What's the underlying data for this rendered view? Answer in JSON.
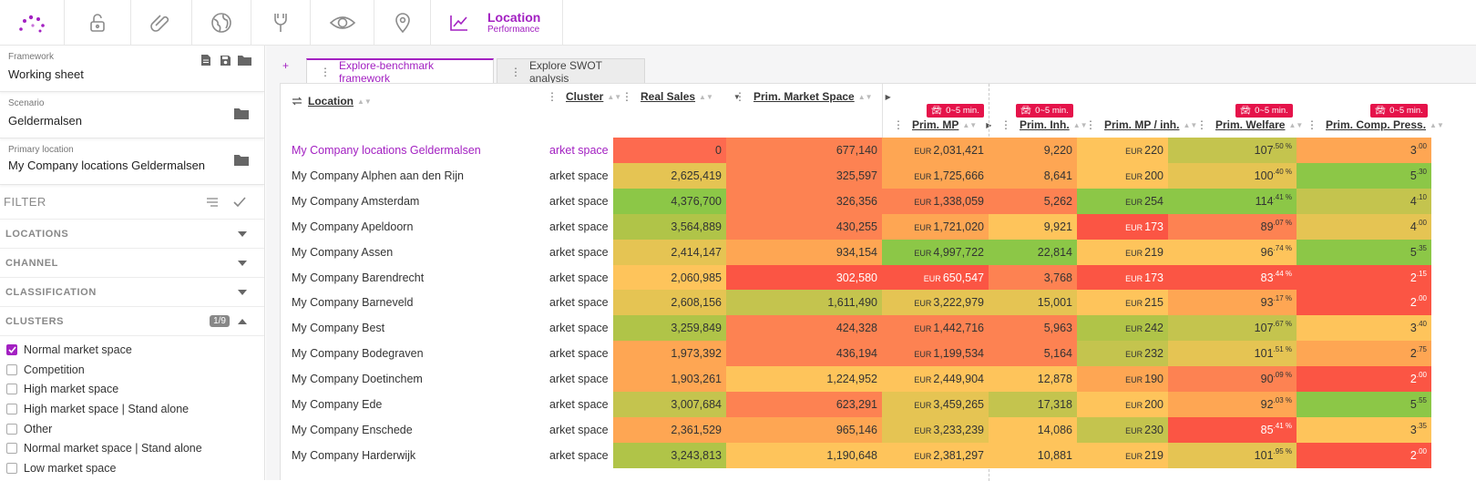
{
  "nav": {
    "items": [
      {
        "icon": "dots-logo-icon"
      },
      {
        "icon": "unlock-icon"
      },
      {
        "icon": "paperclip-icon"
      },
      {
        "icon": "globe-icon"
      },
      {
        "icon": "tools-icon"
      },
      {
        "icon": "eye-icon"
      },
      {
        "icon": "map-pin-icon"
      }
    ],
    "active": {
      "icon": "chart-line-icon",
      "title": "Location",
      "subtitle": "Performance"
    }
  },
  "sidebar": {
    "framework": {
      "caption": "Framework",
      "value": "Working sheet"
    },
    "scenario": {
      "caption": "Scenario",
      "value": "Geldermalsen"
    },
    "primary_location": {
      "caption": "Primary location",
      "value": "My Company locations Geldermalsen"
    },
    "filter_title": "FILTER",
    "sections": [
      "LOCATIONS",
      "CHANNEL",
      "CLASSIFICATION"
    ],
    "clusters_title": "CLUSTERS",
    "clusters_badge": "1/9",
    "clusters": [
      {
        "label": "Normal market space",
        "checked": true
      },
      {
        "label": "Competition",
        "checked": false
      },
      {
        "label": "High market space",
        "checked": false
      },
      {
        "label": "High market space | Stand alone",
        "checked": false
      },
      {
        "label": "Other",
        "checked": false
      },
      {
        "label": "Normal market space | Stand alone",
        "checked": false
      },
      {
        "label": "Low market space",
        "checked": false
      }
    ]
  },
  "tabs": {
    "plus": "+",
    "items": [
      {
        "label": "Explore-benchmark framework",
        "active": true
      },
      {
        "label": "Explore SWOT analysis",
        "active": false
      }
    ]
  },
  "table": {
    "headers": {
      "location": "Location",
      "cluster": "Cluster",
      "real_sales": "Real Sales",
      "prim_market_space": "Prim. Market Space",
      "prim_mp": "Prim. MP",
      "prim_inh": "Prim. Inh.",
      "prim_mp_inh": "Prim. MP / inh.",
      "prim_welfare": "Prim. Welfare",
      "prim_comp_press": "Prim. Comp. Press."
    },
    "travel_badge": "0~5 min.",
    "currency": "EUR",
    "colors": {
      "red": "#fd6a4f",
      "orange_red": "#fd8252",
      "orange": "#fea653",
      "light_orange": "#fec45b",
      "yellow": "#e5c453",
      "olive": "#c4c44e",
      "yellow_green": "#b0c448",
      "green": "#8cc747",
      "deep_red": "#fb5544",
      "accent": "#a321c2",
      "badge_red": "#e5134a"
    },
    "rows": [
      {
        "location": "My Company locations Geldermalsen",
        "cluster": "arket space",
        "selected": true,
        "real_sales": "0",
        "real_sales_c": "red",
        "market_space": "677,140",
        "market_space_c": "orange_red",
        "prim_mp": "2,031,421",
        "prim_mp_c": "orange",
        "inh": "9,220",
        "inh_c": "orange",
        "mp_inh": "220",
        "mp_inh_c": "light_orange",
        "welfare": "107",
        "welfare_sup": ".50 %",
        "welfare_c": "olive",
        "comp": "3",
        "comp_sup": ".00",
        "comp_c": "orange"
      },
      {
        "location": "My Company Alphen aan den Rijn",
        "cluster": "arket space",
        "real_sales": "2,625,419",
        "real_sales_c": "yellow",
        "market_space": "325,597",
        "market_space_c": "orange_red",
        "prim_mp": "1,725,666",
        "prim_mp_c": "orange",
        "inh": "8,641",
        "inh_c": "orange",
        "mp_inh": "200",
        "mp_inh_c": "light_orange",
        "welfare": "100",
        "welfare_sup": ".40 %",
        "welfare_c": "yellow",
        "comp": "5",
        "comp_sup": ".30",
        "comp_c": "green"
      },
      {
        "location": "My Company Amsterdam",
        "cluster": "arket space",
        "real_sales": "4,376,700",
        "real_sales_c": "green",
        "market_space": "326,356",
        "market_space_c": "orange_red",
        "prim_mp": "1,338,059",
        "prim_mp_c": "orange_red",
        "inh": "5,262",
        "inh_c": "orange_red",
        "mp_inh": "254",
        "mp_inh_c": "green",
        "welfare": "114",
        "welfare_sup": ".41 %",
        "welfare_c": "green",
        "comp": "4",
        "comp_sup": ".10",
        "comp_c": "olive"
      },
      {
        "location": "My Company Apeldoorn",
        "cluster": "arket space",
        "real_sales": "3,564,889",
        "real_sales_c": "yellow_green",
        "market_space": "430,255",
        "market_space_c": "orange_red",
        "prim_mp": "1,721,020",
        "prim_mp_c": "orange",
        "inh": "9,921",
        "inh_c": "light_orange",
        "mp_inh": "173",
        "mp_inh_c": "deep_red",
        "welfare": "89",
        "welfare_sup": ".07 %",
        "welfare_c": "orange_red",
        "comp": "4",
        "comp_sup": ".00",
        "comp_c": "yellow"
      },
      {
        "location": "My Company Assen",
        "cluster": "arket space",
        "real_sales": "2,414,147",
        "real_sales_c": "yellow",
        "market_space": "934,154",
        "market_space_c": "orange",
        "prim_mp": "4,997,722",
        "prim_mp_c": "green",
        "inh": "22,814",
        "inh_c": "green",
        "mp_inh": "219",
        "mp_inh_c": "light_orange",
        "welfare": "96",
        "welfare_sup": ".74 %",
        "welfare_c": "light_orange",
        "comp": "5",
        "comp_sup": ".35",
        "comp_c": "green"
      },
      {
        "location": "My Company Barendrecht",
        "cluster": "arket space",
        "real_sales": "2,060,985",
        "real_sales_c": "light_orange",
        "market_space": "302,580",
        "market_space_c": "deep_red",
        "prim_mp": "650,547",
        "prim_mp_c": "deep_red",
        "inh": "3,768",
        "inh_c": "orange_red",
        "mp_inh": "173",
        "mp_inh_c": "deep_red",
        "welfare": "83",
        "welfare_sup": ".44 %",
        "welfare_c": "deep_red",
        "comp": "2",
        "comp_sup": ".15",
        "comp_c": "deep_red"
      },
      {
        "location": "My Company Barneveld",
        "cluster": "arket space",
        "real_sales": "2,608,156",
        "real_sales_c": "yellow",
        "market_space": "1,611,490",
        "market_space_c": "olive",
        "prim_mp": "3,222,979",
        "prim_mp_c": "yellow",
        "inh": "15,001",
        "inh_c": "yellow",
        "mp_inh": "215",
        "mp_inh_c": "light_orange",
        "welfare": "93",
        "welfare_sup": ".17 %",
        "welfare_c": "orange",
        "comp": "2",
        "comp_sup": ".00",
        "comp_c": "deep_red"
      },
      {
        "location": "My Company Best",
        "cluster": "arket space",
        "real_sales": "3,259,849",
        "real_sales_c": "yellow_green",
        "market_space": "424,328",
        "market_space_c": "orange_red",
        "prim_mp": "1,442,716",
        "prim_mp_c": "orange_red",
        "inh": "5,963",
        "inh_c": "orange_red",
        "mp_inh": "242",
        "mp_inh_c": "yellow_green",
        "welfare": "107",
        "welfare_sup": ".67 %",
        "welfare_c": "olive",
        "comp": "3",
        "comp_sup": ".40",
        "comp_c": "light_orange"
      },
      {
        "location": "My Company Bodegraven",
        "cluster": "arket space",
        "real_sales": "1,973,392",
        "real_sales_c": "orange",
        "market_space": "436,194",
        "market_space_c": "orange_red",
        "prim_mp": "1,199,534",
        "prim_mp_c": "orange_red",
        "inh": "5,164",
        "inh_c": "orange_red",
        "mp_inh": "232",
        "mp_inh_c": "olive",
        "welfare": "101",
        "welfare_sup": ".51 %",
        "welfare_c": "yellow",
        "comp": "2",
        "comp_sup": ".75",
        "comp_c": "orange"
      },
      {
        "location": "My Company Doetinchem",
        "cluster": "arket space",
        "real_sales": "1,903,261",
        "real_sales_c": "orange",
        "market_space": "1,224,952",
        "market_space_c": "light_orange",
        "prim_mp": "2,449,904",
        "prim_mp_c": "light_orange",
        "inh": "12,878",
        "inh_c": "light_orange",
        "mp_inh": "190",
        "mp_inh_c": "orange",
        "welfare": "90",
        "welfare_sup": ".09 %",
        "welfare_c": "orange_red",
        "comp": "2",
        "comp_sup": ".00",
        "comp_c": "deep_red"
      },
      {
        "location": "My Company Ede",
        "cluster": "arket space",
        "real_sales": "3,007,684",
        "real_sales_c": "olive",
        "market_space": "623,291",
        "market_space_c": "orange_red",
        "prim_mp": "3,459,265",
        "prim_mp_c": "yellow",
        "inh": "17,318",
        "inh_c": "olive",
        "mp_inh": "200",
        "mp_inh_c": "light_orange",
        "welfare": "92",
        "welfare_sup": ".03 %",
        "welfare_c": "orange",
        "comp": "5",
        "comp_sup": ".55",
        "comp_c": "green"
      },
      {
        "location": "My Company Enschede",
        "cluster": "arket space",
        "real_sales": "2,361,529",
        "real_sales_c": "orange",
        "market_space": "965,146",
        "market_space_c": "orange",
        "prim_mp": "3,233,239",
        "prim_mp_c": "yellow",
        "inh": "14,086",
        "inh_c": "light_orange",
        "mp_inh": "230",
        "mp_inh_c": "olive",
        "welfare": "85",
        "welfare_sup": ".41 %",
        "welfare_c": "deep_red",
        "comp": "3",
        "comp_sup": ".35",
        "comp_c": "light_orange"
      },
      {
        "location": "My Company Harderwijk",
        "cluster": "arket space",
        "real_sales": "3,243,813",
        "real_sales_c": "yellow_green",
        "market_space": "1,190,648",
        "market_space_c": "light_orange",
        "prim_mp": "2,381,297",
        "prim_mp_c": "light_orange",
        "inh": "10,881",
        "inh_c": "light_orange",
        "mp_inh": "219",
        "mp_inh_c": "light_orange",
        "welfare": "101",
        "welfare_sup": ".95 %",
        "welfare_c": "yellow",
        "comp": "2",
        "comp_sup": ".00",
        "comp_c": "deep_red"
      }
    ]
  }
}
